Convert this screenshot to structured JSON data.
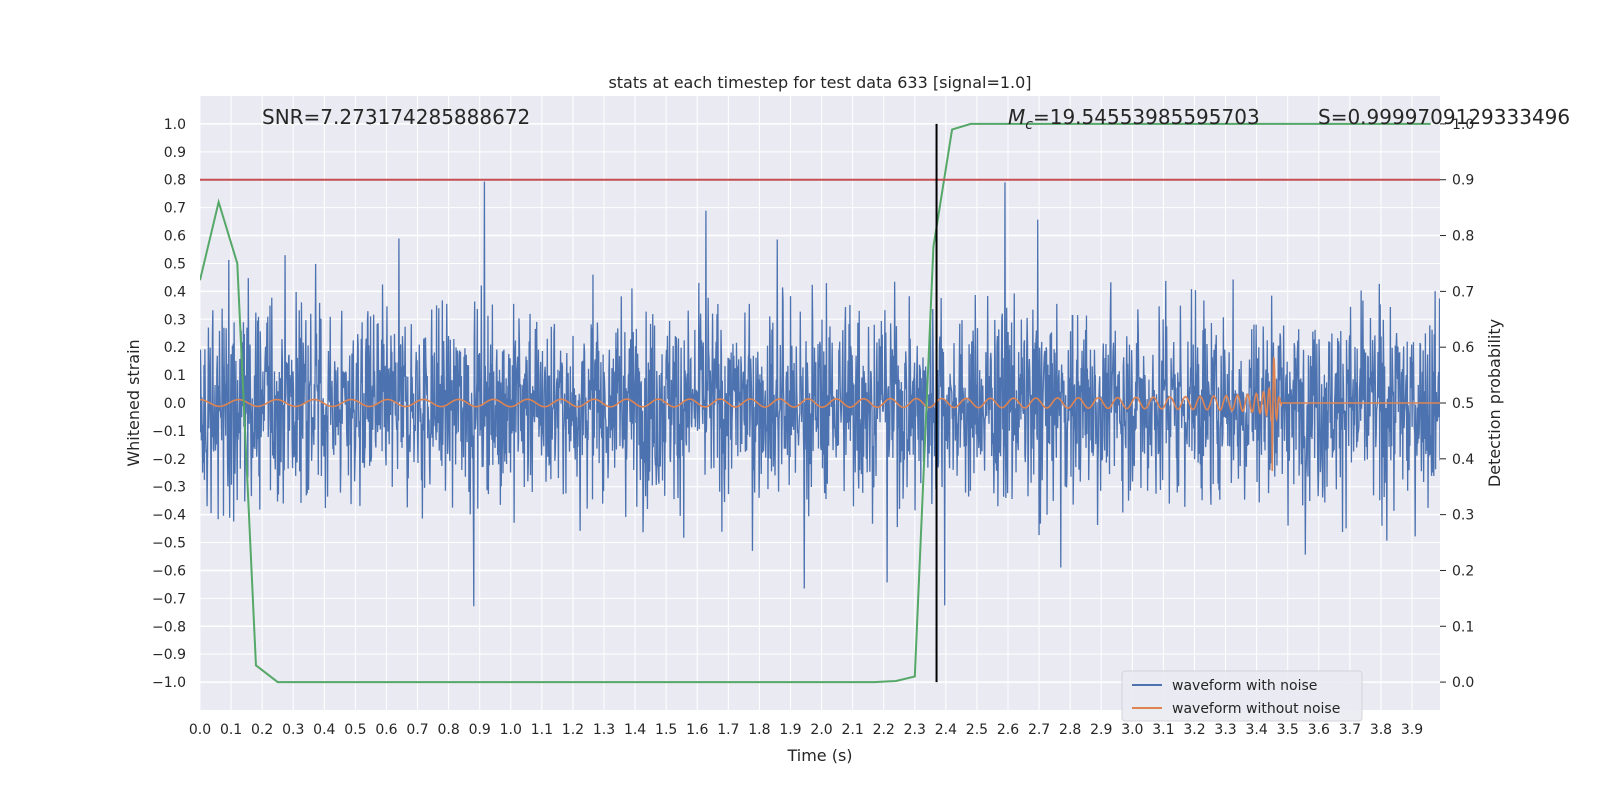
{
  "chart_data": {
    "type": "line",
    "title": "stats at each timestep for test data 633 [signal=1.0]",
    "xlabel": "Time (s)",
    "ylabel_left": "Whitened strain",
    "ylabel_right": "Detection probability",
    "xlim": [
      0.0,
      3.99
    ],
    "ylim_left": [
      -1.1,
      1.1
    ],
    "ylim_right": [
      -0.05,
      1.05
    ],
    "x_ticks": [
      "0.0",
      "0.1",
      "0.2",
      "0.3",
      "0.4",
      "0.5",
      "0.6",
      "0.7",
      "0.8",
      "0.9",
      "1.0",
      "1.1",
      "1.2",
      "1.3",
      "1.4",
      "1.5",
      "1.6",
      "1.7",
      "1.8",
      "1.9",
      "2.0",
      "2.1",
      "2.2",
      "2.3",
      "2.4",
      "2.5",
      "2.6",
      "2.7",
      "2.8",
      "2.9",
      "3.0",
      "3.1",
      "3.2",
      "3.3",
      "3.4",
      "3.5",
      "3.6",
      "3.7",
      "3.8",
      "3.9"
    ],
    "y_ticks_left": [
      "−1.0",
      "−0.9",
      "−0.8",
      "−0.7",
      "−0.6",
      "−0.5",
      "−0.4",
      "−0.3",
      "−0.2",
      "−0.1",
      "0.0",
      "0.1",
      "0.2",
      "0.3",
      "0.4",
      "0.5",
      "0.6",
      "0.7",
      "0.8",
      "0.9",
      "1.0"
    ],
    "y_ticks_right": [
      "0.0",
      "0.1",
      "0.2",
      "0.3",
      "0.4",
      "0.5",
      "0.6",
      "0.7",
      "0.8",
      "0.9",
      "1.0"
    ],
    "grid": true,
    "legend_position": "lower-right",
    "annotations": {
      "snr": "SNR=7.273174285888672",
      "mc_symbol": "M",
      "mc_subscript": "c",
      "mc_value": "=19.54553985595703",
      "s": "S=0.9999709129333496"
    },
    "threshold_strain": 0.8,
    "vline_time": 2.37,
    "series": [
      {
        "name": "waveform with noise",
        "color": "#4c72b0",
        "description": "dense whitened noise, amplitude about ±0.3 to ±0.5 with peaks near ±1.0, spanning 0.0-3.99 s"
      },
      {
        "name": "waveform without noise",
        "color": "#dd8452",
        "chirp": {
          "t_start": 0.0,
          "t_merge": 3.45,
          "t_end": 3.48,
          "amp_start": 0.012,
          "amp_peak": 0.35,
          "freq_start": 8,
          "freq_peak": 60
        }
      },
      {
        "name": "",
        "color": "#55a868",
        "axis": "right",
        "x": [
          0.0,
          0.06,
          0.12,
          0.18,
          0.25,
          0.31,
          0.37,
          0.43,
          0.49,
          0.55,
          0.61,
          0.67,
          0.73,
          0.79,
          0.85,
          0.91,
          0.97,
          1.03,
          1.09,
          1.15,
          1.21,
          1.27,
          1.33,
          1.39,
          1.45,
          1.51,
          1.57,
          1.63,
          1.69,
          1.75,
          1.81,
          1.87,
          1.93,
          1.99,
          2.05,
          2.11,
          2.17,
          2.24,
          2.3,
          2.36,
          2.42,
          2.48,
          2.54,
          2.6,
          2.66,
          2.72,
          2.78,
          2.84,
          2.9,
          2.96,
          3.02,
          3.08,
          3.14,
          3.2,
          3.26,
          3.32,
          3.38,
          3.44,
          3.5,
          3.56,
          3.62,
          3.68,
          3.74,
          3.8,
          3.86,
          3.92,
          3.96
        ],
        "y": [
          0.72,
          0.86,
          0.75,
          0.03,
          0.0,
          0.0,
          0.0,
          0.0,
          0.0,
          0.0,
          0.0,
          0.0,
          0.0,
          0.0,
          0.0,
          0.0,
          0.0,
          0.0,
          0.0,
          0.0,
          0.0,
          0.0,
          0.0,
          0.0,
          0.0,
          0.0,
          0.0,
          0.0,
          0.0,
          0.0,
          0.0,
          0.0,
          0.0,
          0.0,
          0.0,
          0.0,
          0.0,
          0.002,
          0.01,
          0.78,
          0.99,
          1.0,
          1.0,
          1.0,
          1.0,
          1.0,
          1.0,
          1.0,
          1.0,
          1.0,
          1.0,
          1.0,
          1.0,
          1.0,
          1.0,
          1.0,
          1.0,
          1.0,
          1.0,
          1.0,
          1.0,
          1.0,
          1.0,
          1.0,
          1.0,
          1.0,
          1.0
        ]
      }
    ],
    "colors": {
      "background": "#eaeaf2",
      "grid": "#ffffff",
      "threshold": "#c44e52",
      "vline": "#000000"
    }
  }
}
